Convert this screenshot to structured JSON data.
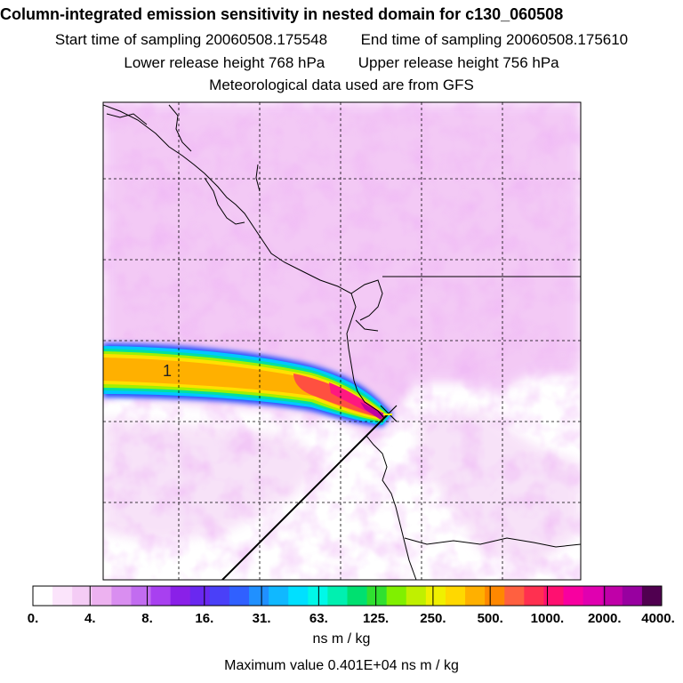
{
  "header": {
    "title": "Column-integrated emission sensitivity in nested domain for c130_060508",
    "start_label": "Start time of sampling",
    "start_value": "20060508.175548",
    "end_label": "End time of sampling",
    "end_value": "20060508.175610",
    "lower_label": "Lower release height",
    "lower_value": "768 hPa",
    "upper_label": "Upper release height",
    "upper_value": "756 hPa",
    "met_note": "Meteorological data used are from GFS"
  },
  "map": {
    "plume_label": "1",
    "colors": {
      "background": "#ffffff",
      "haze": "#f2c8f5",
      "grid": "#000000"
    }
  },
  "colorbar": {
    "colors": [
      "#ffffff",
      "#fbe4fb",
      "#f4ccf5",
      "#edb2f0",
      "#d98ef0",
      "#c26cf0",
      "#a840f0",
      "#8a20e8",
      "#6a28f0",
      "#4a40f8",
      "#3060ff",
      "#2090ff",
      "#10b8ff",
      "#00e0ff",
      "#00f8e8",
      "#00f0b0",
      "#00e070",
      "#30e030",
      "#80f000",
      "#c0f000",
      "#f0f000",
      "#ffd800",
      "#ffb000",
      "#ff8800",
      "#ff6040",
      "#ff3050",
      "#ff1070",
      "#f800a0",
      "#e000b0",
      "#c000a8",
      "#9800a0",
      "#500050"
    ],
    "labels": [
      "0.",
      "4.",
      "8.",
      "16.",
      "31.",
      "63.",
      "125.",
      "250.",
      "500.",
      "1000.",
      "2000.",
      "4000."
    ],
    "units": "ns m / kg"
  },
  "footer": {
    "max_label": "Maximum value",
    "max_value": "0.401E+04 ns m / kg"
  }
}
